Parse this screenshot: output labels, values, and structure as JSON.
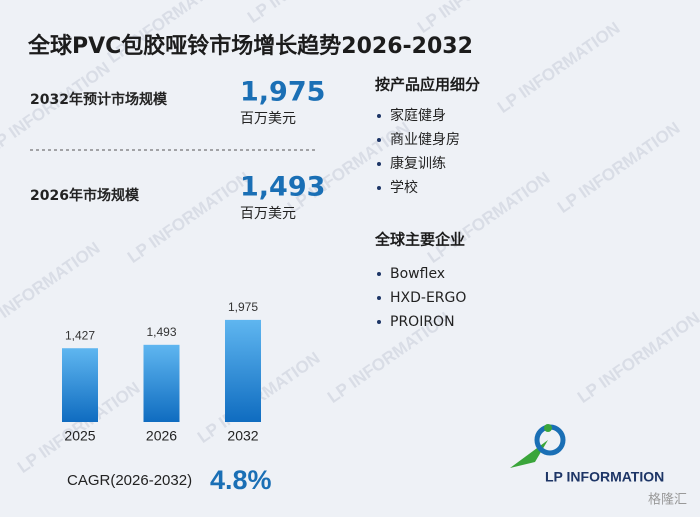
{
  "title": "全球PVC包胶哑铃市场增长趋势2026-2032",
  "stats": [
    {
      "label": "2032年预计市场规模",
      "value": "1,975",
      "unit": "百万美元"
    },
    {
      "label": "2026年市场规模",
      "value": "1,493",
      "unit": "百万美元"
    }
  ],
  "chart_data": {
    "type": "bar",
    "categories": [
      "2025",
      "2026",
      "2032"
    ],
    "values": [
      1427,
      1493,
      1975
    ],
    "value_labels": [
      "1,427",
      "1,493",
      "1,975"
    ],
    "color": "#1a7fd0"
  },
  "cagr": {
    "label": "CAGR(2026-2032)",
    "value": "4.8%"
  },
  "segments": {
    "title": "按产品应用细分",
    "items": [
      "家庭健身",
      "商业健身房",
      "康复训练",
      "学校"
    ]
  },
  "companies": {
    "title": "全球主要企业",
    "items": [
      "Bowflex",
      "HXD-ERGO",
      "PROIRON"
    ]
  },
  "logo": "LP INFORMATION",
  "watermark": "LP INFORMATION",
  "source_mark": "格隆汇"
}
